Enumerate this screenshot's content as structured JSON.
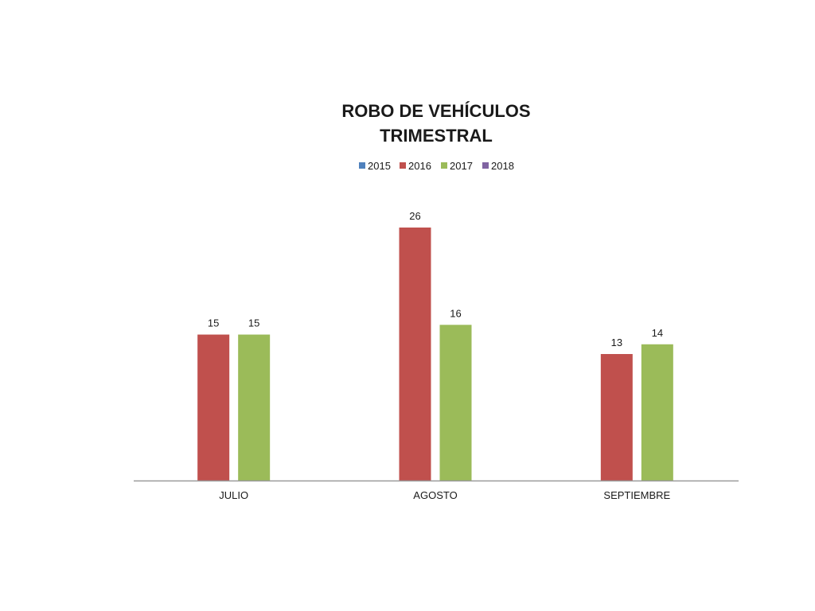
{
  "chart_data": {
    "type": "bar",
    "title": [
      "ROBO DE VEHÍCULOS",
      "TRIMESTRAL"
    ],
    "categories": [
      "JULIO",
      "AGOSTO",
      "SEPTIEMBRE"
    ],
    "series": [
      {
        "name": "2015",
        "color": "#4F81BD",
        "values": [
          null,
          null,
          null
        ]
      },
      {
        "name": "2016",
        "color": "#C0504D",
        "values": [
          15,
          26,
          13
        ]
      },
      {
        "name": "2017",
        "color": "#9BBB59",
        "values": [
          15,
          16,
          14
        ]
      },
      {
        "name": "2018",
        "color": "#8064A2",
        "values": [
          null,
          null,
          null
        ]
      }
    ],
    "ylim": [
      0,
      28
    ],
    "grid": false,
    "legend_position": "top",
    "data_labels": true,
    "axis_color": "#999999"
  }
}
